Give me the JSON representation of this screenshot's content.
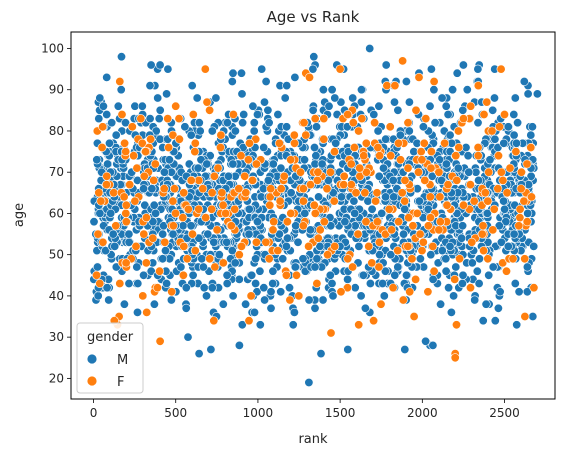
{
  "chart_data": {
    "type": "scatter",
    "title": "Age vs Rank",
    "xlabel": "rank",
    "ylabel": "age",
    "xlim": [
      -137,
      2807
    ],
    "ylim": [
      15,
      104
    ],
    "xticks": [
      0,
      500,
      1000,
      1500,
      2000,
      2500
    ],
    "yticks": [
      20,
      30,
      40,
      50,
      60,
      70,
      80,
      90,
      100
    ],
    "grid": false,
    "legend": {
      "title": "gender",
      "placement": "lower-left"
    },
    "series": [
      {
        "name": "M",
        "color": "#1f77b4",
        "sample_points": [
          [
            1310,
            19
          ],
          [
            1680,
            100
          ],
          [
            170,
            98
          ],
          [
            1340,
            98
          ],
          [
            350,
            96
          ],
          [
            1780,
            96
          ],
          [
            2250,
            96
          ],
          [
            1980,
            94
          ],
          [
            2120,
            88
          ],
          [
            2440,
            95
          ],
          [
            80,
            93
          ],
          [
            2620,
            92
          ],
          [
            600,
            91
          ],
          [
            1050,
            92
          ],
          [
            2700,
            89
          ],
          [
            900,
            94
          ]
        ]
      },
      {
        "name": "F",
        "color": "#ff7f0e",
        "sample_points": [
          [
            1880,
            97
          ],
          [
            1980,
            93
          ],
          [
            1500,
            95
          ],
          [
            680,
            95
          ],
          [
            2200,
            26
          ],
          [
            2200,
            25
          ],
          [
            2050,
            59
          ],
          [
            1740,
            74
          ],
          [
            430,
            66
          ],
          [
            2660,
            76
          ],
          [
            2500,
            84
          ],
          [
            160,
            92
          ],
          [
            1280,
            82
          ],
          [
            900,
            52
          ],
          [
            1950,
            35
          ],
          [
            300,
            40
          ]
        ]
      }
    ]
  }
}
